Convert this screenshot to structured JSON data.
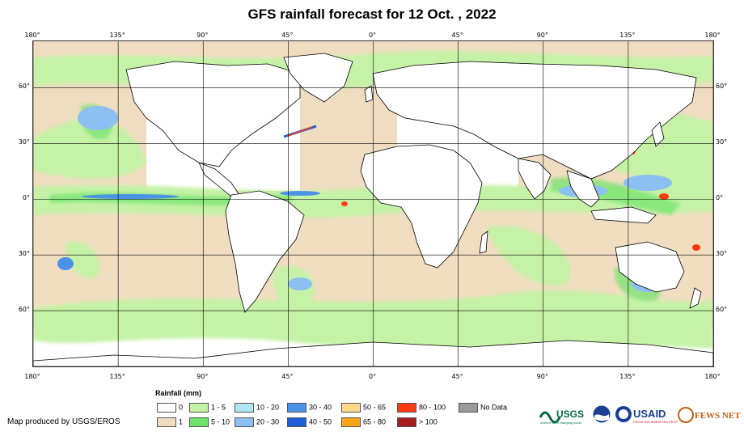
{
  "title": "GFS rainfall forecast for 12 Oct. , 2022",
  "axes": {
    "lon_labels": [
      "180°",
      "135°",
      "90°",
      "45°",
      "0°",
      "45°",
      "90°",
      "135°",
      "180°"
    ],
    "lat_labels": [
      "60°",
      "30°",
      "0°",
      "30°",
      "60°"
    ]
  },
  "legend": {
    "title": "Rainfall (mm)",
    "items": [
      {
        "label": "0",
        "color": "#ffffff"
      },
      {
        "label": "1",
        "color": "#f0dcbe"
      },
      {
        "label": "1 - 5",
        "color": "#c5f2a6"
      },
      {
        "label": "5 - 10",
        "color": "#6fe36a"
      },
      {
        "label": "10 - 20",
        "color": "#b0e6f2"
      },
      {
        "label": "20 - 30",
        "color": "#8cc0f2"
      },
      {
        "label": "30 - 40",
        "color": "#4a91e8"
      },
      {
        "label": "40 - 50",
        "color": "#1f5ed6"
      },
      {
        "label": "50 - 65",
        "color": "#ffd98a"
      },
      {
        "label": "65 - 80",
        "color": "#ffa31a"
      },
      {
        "label": "80 - 100",
        "color": "#ff3a12"
      },
      {
        "label": "> 100",
        "color": "#a71d1d"
      },
      {
        "label": "No Data",
        "color": "#9a9a9a"
      }
    ]
  },
  "credit": "Map produced by USGS/EROS",
  "logos": {
    "usgs": "USGS",
    "usgs_tagline": "science for a changing world",
    "usaid": "USAID",
    "usaid_tagline": "FROM THE AMERICAN PEOPLE",
    "fews": "FEWS NET"
  }
}
